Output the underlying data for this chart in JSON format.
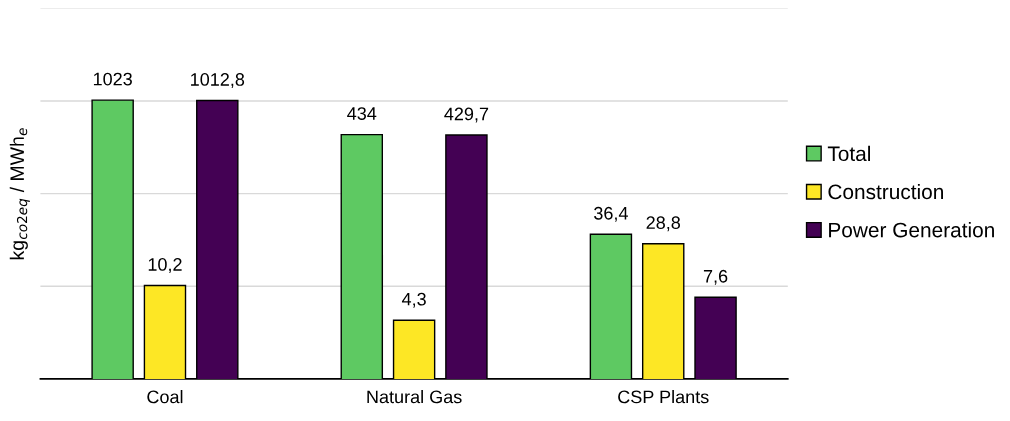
{
  "chart_data": {
    "type": "bar",
    "ylabel": "kg$_{co2eq}$ / MWh$_{e}$",
    "categories": [
      "Coal",
      "Natural Gas",
      "CSP Plants"
    ],
    "series": [
      {
        "name": "Total",
        "color": "#5ec962",
        "values": [
          1023,
          434,
          36.4
        ],
        "value_labels": [
          "1023",
          "434",
          "36,4"
        ]
      },
      {
        "name": "Construction",
        "color": "#fde725",
        "values": [
          10.2,
          4.3,
          28.8
        ],
        "value_labels": [
          "10,2",
          "4,3",
          "28,8"
        ]
      },
      {
        "name": "Power Generation",
        "color": "#440154",
        "values": [
          1012.8,
          429.7,
          7.6
        ],
        "value_labels": [
          "1012,8",
          "429,7",
          "7,6"
        ]
      }
    ],
    "log": true,
    "ylim": [
      1,
      10000
    ],
    "yticks": [
      {
        "value": 1,
        "label": null
      },
      {
        "value": 10,
        "label": null
      },
      {
        "value": 100,
        "label": null
      },
      {
        "value": 1000,
        "label": null
      },
      {
        "value": 10000,
        "label": null
      }
    ],
    "grid": "y",
    "legend": "right"
  }
}
